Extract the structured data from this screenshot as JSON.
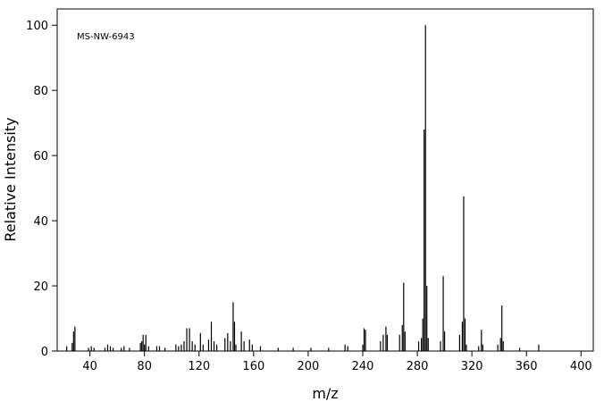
{
  "chart_data": {
    "type": "stick",
    "annotation": "MS-NW-6943",
    "xlabel": "m/z",
    "ylabel": "Relative Intensity",
    "color": "#000000",
    "xlim": [
      16,
      409
    ],
    "ylim": [
      0,
      105
    ],
    "xticks": [
      40,
      80,
      120,
      160,
      200,
      240,
      280,
      320,
      360,
      400
    ],
    "yticks": [
      0,
      20,
      40,
      60,
      80,
      100
    ],
    "x": [
      23,
      27,
      28,
      29,
      39,
      41,
      43,
      51,
      53,
      55,
      57,
      63,
      65,
      69,
      77,
      78,
      79,
      80,
      81,
      83,
      89,
      91,
      95,
      103,
      105,
      107,
      109,
      111,
      113,
      115,
      117,
      121,
      123,
      127,
      129,
      131,
      133,
      139,
      141,
      143,
      145,
      146,
      147,
      151,
      153,
      157,
      159,
      165,
      178,
      189,
      202,
      215,
      227,
      229,
      240,
      241,
      242,
      253,
      255,
      257,
      258,
      267,
      269,
      270,
      271,
      281,
      283,
      284,
      285,
      286,
      287,
      288,
      297,
      299,
      300,
      311,
      313,
      314,
      315,
      316,
      325,
      327,
      328,
      339,
      341,
      342,
      343,
      355,
      369
    ],
    "values": [
      1.5,
      2.5,
      6,
      7.5,
      1,
      1.5,
      1,
      1,
      2,
      1.5,
      1,
      1,
      1.5,
      1,
      2.5,
      3,
      5,
      2,
      5,
      1.5,
      1.5,
      1.5,
      1,
      2,
      1.5,
      2,
      3,
      7,
      7,
      3,
      2,
      5.5,
      2,
      3.5,
      9,
      3,
      2,
      4,
      5.5,
      3,
      15,
      9,
      2,
      6,
      3,
      3.5,
      2,
      1.5,
      1,
      1,
      1,
      1,
      2,
      1.5,
      2,
      7,
      6.5,
      3,
      5,
      7.5,
      5,
      5,
      8,
      21,
      6,
      3,
      4,
      10,
      68,
      100,
      20,
      4,
      3,
      23,
      6,
      5,
      9,
      47.5,
      10,
      2,
      1.5,
      6.5,
      2,
      2,
      4,
      14,
      3,
      1,
      2
    ]
  }
}
